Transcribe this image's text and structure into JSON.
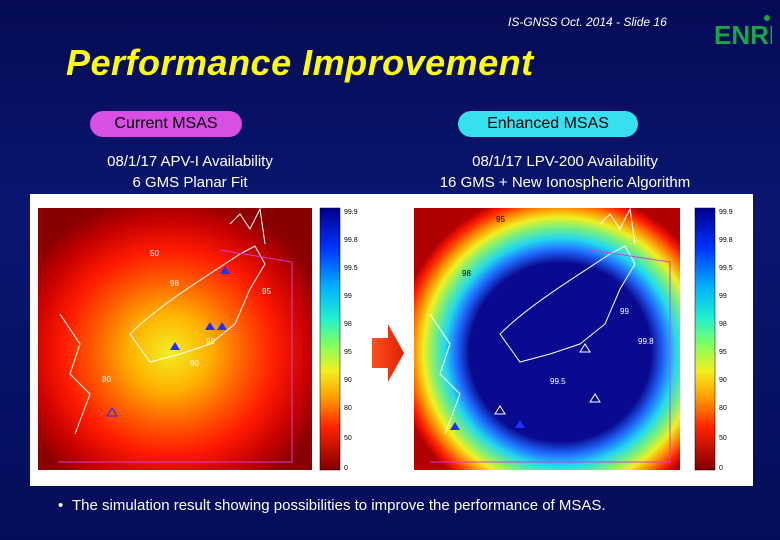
{
  "slide": {
    "header": "IS-GNSS Oct. 2014 - Slide 16",
    "logo_text": "ENRI",
    "title": "Performance Improvement",
    "left": {
      "pill": "Current MSAS",
      "caption_line1": "08/1/17 APV-I Availability",
      "caption_line2": "6 GMS Planar Fit"
    },
    "right": {
      "pill": "Enhanced MSAS",
      "caption_line1": "08/1/17 LPV-200 Availability",
      "caption_line2": "16 GMS + New Ionospheric Algorithm"
    },
    "bullet": "The simulation result showing possibilities to improve the performance of MSAS."
  },
  "maps": {
    "left_colorbar_ticks": [
      "99.9",
      "99.8",
      "99.5",
      "99",
      "98",
      "95",
      "90",
      "80",
      "50",
      "0"
    ],
    "right_colorbar_ticks": [
      "99.9",
      "99.8",
      "99.5",
      "99",
      "98",
      "95",
      "90",
      "80",
      "50",
      "0"
    ],
    "left_contour_labels": [
      "50",
      "80",
      "90",
      "95",
      "98",
      "99"
    ],
    "right_contour_labels": [
      "95",
      "98",
      "99",
      "99.5",
      "99.8"
    ]
  },
  "colors": {
    "title": "#ffff00",
    "pill_current": "#d84fe6",
    "pill_enhanced": "#37e0f0",
    "background": "#0a1670",
    "map_dark_red": "#8a0000",
    "map_dark_blue": "#0a0a90"
  }
}
